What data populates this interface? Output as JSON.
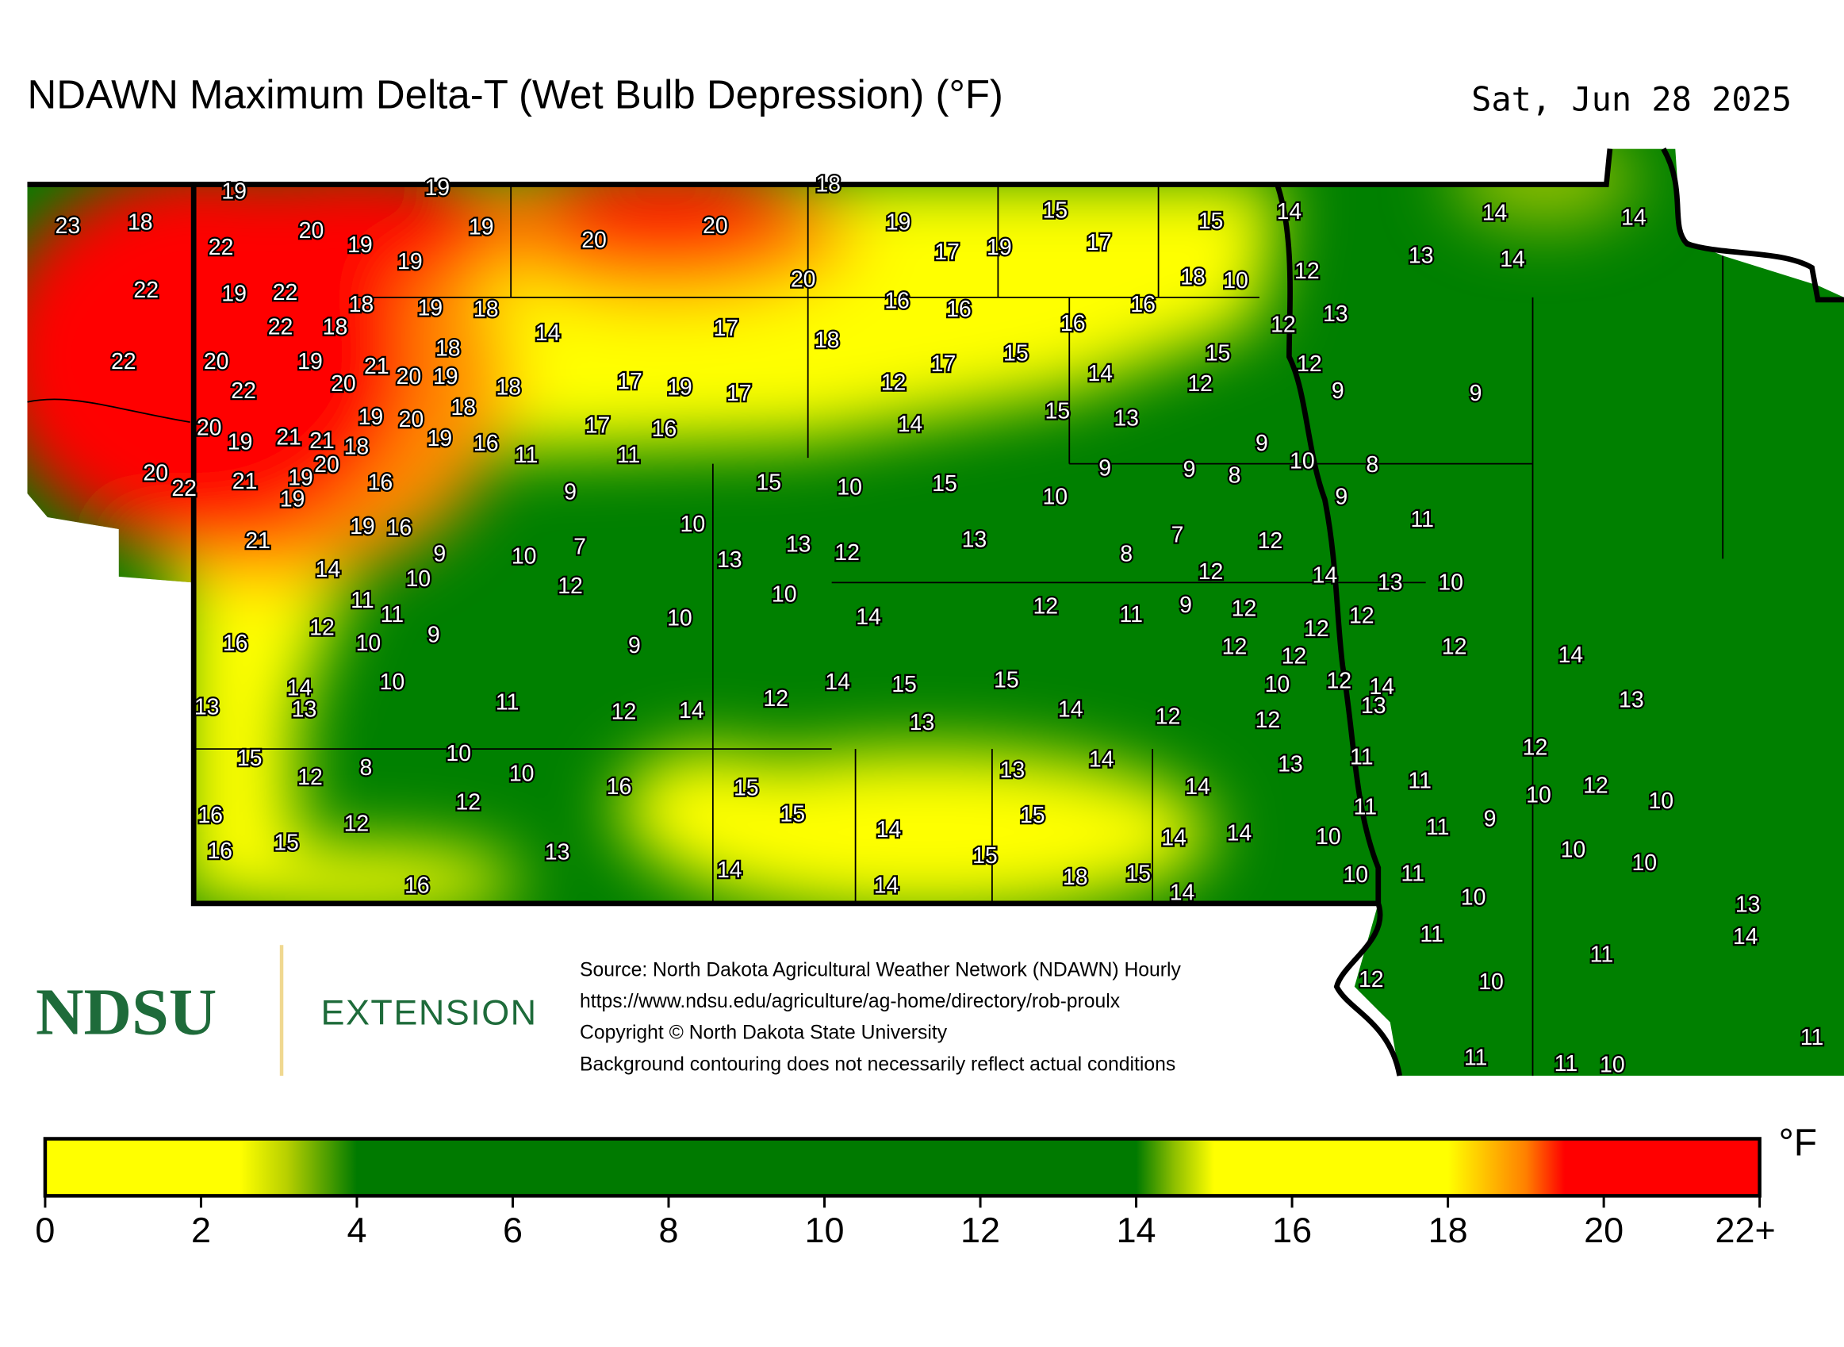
{
  "header": {
    "title": "NDAWN Maximum Delta-T (Wet Bulb Depression) (°F)",
    "date": "Sat, Jun 28 2025"
  },
  "logo": {
    "name": "NDSU",
    "unit": "EXTENSION"
  },
  "source_lines": [
    "Source: North Dakota Agricultural Weather Network (NDAWN) Hourly",
    "https://www.ndsu.edu/agriculture/ag-home/directory/rob-proulx",
    "Copyright © North Dakota State University",
    "Background contouring does not necessarily reflect actual conditions"
  ],
  "colorbar": {
    "unit": "°F",
    "ticks": [
      0,
      2,
      4,
      6,
      8,
      10,
      12,
      14,
      16,
      18,
      20,
      {
        "value": 22,
        "label": "22+"
      }
    ],
    "stops": [
      [
        0,
        "#ffff00"
      ],
      [
        2.5,
        "#ffff00"
      ],
      [
        3.1,
        "#b8d000"
      ],
      [
        4,
        "#007a00"
      ],
      [
        14,
        "#007a00"
      ],
      [
        14.5,
        "#90c000"
      ],
      [
        15,
        "#ffff00"
      ],
      [
        18,
        "#ffff00"
      ],
      [
        19,
        "#ff8000"
      ],
      [
        19.5,
        "#ff0000"
      ],
      [
        22,
        "#ff0000"
      ]
    ]
  },
  "station_values": [
    19,
    19,
    18,
    23,
    18,
    20,
    19,
    22,
    19,
    19,
    20,
    20,
    19,
    15,
    15,
    14,
    14,
    14,
    17,
    19,
    17,
    13,
    14,
    22,
    19,
    22,
    18,
    19,
    18,
    20,
    16,
    16,
    16,
    18,
    10,
    12,
    13,
    12,
    22,
    18,
    14,
    17,
    18,
    16,
    22,
    20,
    19,
    18,
    21,
    20,
    19,
    20,
    22,
    18,
    17,
    19,
    17,
    17,
    15,
    15,
    12,
    14,
    12,
    12,
    9,
    9,
    18,
    19,
    20,
    20,
    19,
    21,
    21,
    18,
    19,
    16,
    17,
    16,
    14,
    15,
    13,
    11,
    11,
    9,
    10,
    8,
    9,
    9,
    8,
    20,
    22,
    21,
    19,
    20,
    19,
    16,
    9,
    15,
    10,
    15,
    10,
    9,
    19,
    16,
    10,
    11,
    7,
    12,
    13,
    21,
    9,
    10,
    7,
    13,
    13,
    12,
    8,
    14,
    10,
    12,
    10,
    12,
    14,
    13,
    10,
    11,
    11,
    12,
    9,
    10,
    10,
    14,
    12,
    11,
    9,
    12,
    12,
    12,
    16,
    9,
    12,
    12,
    12,
    14,
    10,
    14,
    13,
    13,
    11,
    12,
    14,
    12,
    14,
    15,
    15,
    13,
    14,
    12,
    10,
    12,
    14,
    13,
    12,
    13,
    15,
    12,
    8,
    10,
    10,
    12,
    16,
    15,
    13,
    14,
    14,
    13,
    11,
    11,
    12,
    10,
    12,
    10,
    16,
    12,
    15,
    15,
    14,
    11,
    11,
    9,
    14,
    14,
    10,
    16,
    15,
    13,
    15,
    10,
    10,
    14,
    18,
    15,
    10,
    11,
    16,
    14,
    14,
    10,
    13,
    11,
    14,
    11,
    12,
    10,
    11,
    11,
    11,
    10
  ]
}
